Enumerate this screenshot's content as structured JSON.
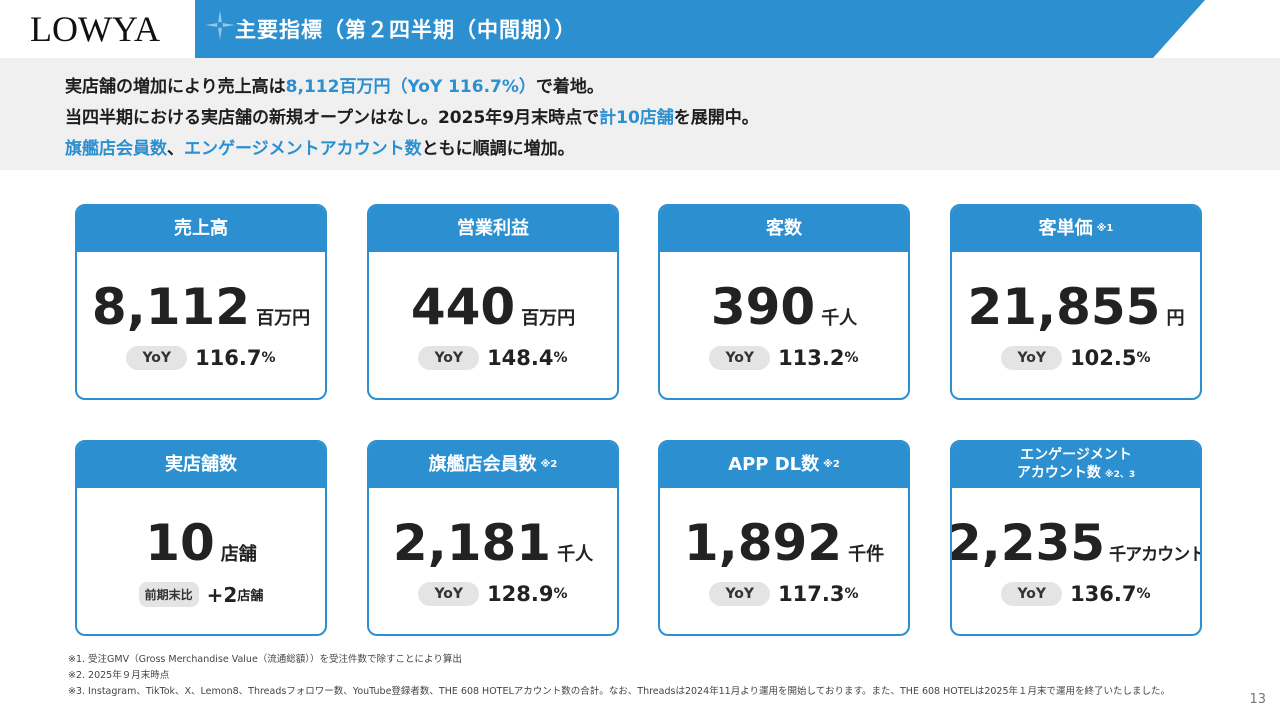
{
  "header": {
    "logo": "LOWYA",
    "title": "主要指標（第２四半期（中間期））",
    "bar_color": "#2b8fd0",
    "icon": "compass-star-icon"
  },
  "summary": {
    "line1": {
      "a": "実店舗の増加により売上高は",
      "b": "8,112百万円（YoY 116.7%）",
      "c": "で着地。"
    },
    "line2": {
      "a": "当四半期における実店舗の新規オープンはなし。2025年9月末時点で",
      "b": "計10店舗",
      "c": "を展開中。"
    },
    "line3": {
      "a": "旗艦店会員数",
      "b": "、",
      "c": "エンゲージメントアカウント数",
      "d": "ともに順調に増加。"
    }
  },
  "cards": [
    {
      "title": "売上高",
      "note": "",
      "value": "8,112",
      "unit": "百万円",
      "badge": "YoY",
      "yoy": "116.7",
      "pct": "%"
    },
    {
      "title": "営業利益",
      "note": "",
      "value": "440",
      "unit": "百万円",
      "badge": "YoY",
      "yoy": "148.4",
      "pct": "%"
    },
    {
      "title": "客数",
      "note": "",
      "value": "390",
      "unit": "千人",
      "badge": "YoY",
      "yoy": "113.2",
      "pct": "%"
    },
    {
      "title": "客単価",
      "note": "※1",
      "value": "21,855",
      "unit": "円",
      "badge": "YoY",
      "yoy": "102.5",
      "pct": "%"
    },
    {
      "title": "実店舗数",
      "note": "",
      "value": "10",
      "unit": "店舗",
      "badge": "前期末比",
      "yoy": "+2",
      "pct": "店舗"
    },
    {
      "title": "旗艦店会員数",
      "note": "※2",
      "value": "2,181",
      "unit": "千人",
      "badge": "YoY",
      "yoy": "128.9",
      "pct": "%"
    },
    {
      "title": "APP DL数",
      "note": "※2",
      "value": "1,892",
      "unit": "千件",
      "badge": "YoY",
      "yoy": "117.3",
      "pct": "%"
    },
    {
      "title_line1": "エンゲージメント",
      "title_line2": "アカウント数",
      "note": "※2、3",
      "value": "2,235",
      "unit": "千アカウント",
      "badge": "YoY",
      "yoy": "136.7",
      "pct": "%"
    }
  ],
  "footnotes": [
    "※1. 受注GMV（Gross Merchandise Value（流通総額））を受注件数で除すことにより算出",
    "※2. 2025年９月末時点",
    "※3. Instagram、TikTok、X、Lemon8、Threadsフォロワー数、YouTube登録者数、THE 608 HOTELアカウント数の合計。なお、Threadsは2024年11月より運用を開始しております。また、THE 608 HOTELは2025年１月末で運用を終了いたしました。"
  ],
  "page_number": "13"
}
